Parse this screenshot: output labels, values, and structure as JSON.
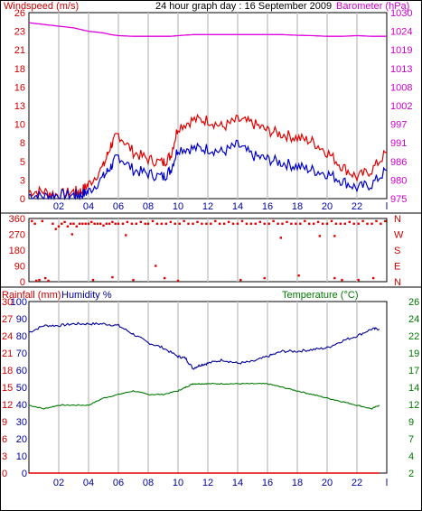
{
  "header": {
    "title": "24 hour graph day : 16 September 2009",
    "left_label": "Windspeed (m/s)",
    "right_label": "Barometer (hPa)"
  },
  "colors": {
    "wind_gust": "#e00000",
    "wind_avg": "#0000cc",
    "barometer": "#e000e0",
    "direction": "#e00000",
    "humidity": "#000099",
    "temperature": "#007700",
    "rainfall": "#e00000",
    "axis_left": "#cc0000",
    "axis_right_baro": "#cc00cc",
    "axis_dir": "#cc0000",
    "axis_hum": "#000099",
    "axis_temp": "#007700"
  },
  "x_ticks": [
    "02",
    "04",
    "06",
    "08",
    "10",
    "12",
    "14",
    "16",
    "18",
    "20",
    "22",
    "l"
  ],
  "chart_data": [
    {
      "type": "line",
      "title": "24 hour graph day : 16 September 2009",
      "ylabel": "Windspeed (m/s)",
      "y2label": "Barometer (hPa)",
      "ylim": [
        0,
        26
      ],
      "y2lim": [
        975,
        1030
      ],
      "yticks": [
        "26",
        "23",
        "21",
        "18",
        "16",
        "13",
        "10",
        "8",
        "5",
        "3",
        "0"
      ],
      "y2ticks": [
        "1030",
        "1024",
        "1019",
        "1013",
        "1008",
        "1002",
        "997",
        "991",
        "986",
        "980",
        "975"
      ],
      "x": [
        0,
        1,
        2,
        3,
        3.5,
        4,
        5,
        5.5,
        6,
        7,
        8,
        9,
        9.5,
        10,
        11,
        12,
        13,
        14,
        15,
        16,
        17,
        18,
        19,
        20,
        21,
        22,
        23,
        24
      ],
      "series": [
        {
          "name": "gust",
          "values": [
            1,
            1,
            0.5,
            1,
            1,
            2,
            4.5,
            7.5,
            9,
            6.5,
            5.5,
            5,
            6,
            10,
            11,
            11,
            10,
            11,
            10.5,
            9.5,
            9,
            8.5,
            8,
            6.5,
            4.5,
            3,
            4,
            6.5
          ]
        },
        {
          "name": "average",
          "values": [
            0.5,
            0.3,
            0.5,
            0.5,
            0.5,
            1,
            3,
            4.5,
            6,
            4,
            3.5,
            3,
            4,
            7,
            7,
            7,
            6.5,
            7.5,
            6,
            5.5,
            5,
            4.5,
            4,
            3.5,
            2.5,
            1.5,
            2,
            4
          ]
        },
        {
          "name": "barometer",
          "values": [
            1027,
            1026.5,
            1026,
            1025.5,
            1025,
            1024.5,
            1024,
            1023.5,
            1023.2,
            1023,
            1023,
            1023,
            1023,
            1023.2,
            1023.5,
            1023.5,
            1023.5,
            1023.5,
            1023.5,
            1023.5,
            1023.5,
            1023.3,
            1023.2,
            1023,
            1023,
            1023.2,
            1023,
            1023
          ]
        }
      ]
    },
    {
      "type": "scatter",
      "ylabel_right": [
        "N",
        "W",
        "S",
        "E",
        "N"
      ],
      "ylim": [
        0,
        360
      ],
      "yticks": [
        "360",
        "270",
        "180",
        "90",
        "0"
      ],
      "series": [
        {
          "name": "direction",
          "values": [
            [
              0.2,
              345
            ],
            [
              0.4,
              330
            ],
            [
              0.5,
              5
            ],
            [
              0.7,
              10
            ],
            [
              0.9,
              345
            ],
            [
              1.1,
              20
            ],
            [
              1.3,
              5
            ],
            [
              1.6,
              330
            ],
            [
              1.8,
              300
            ],
            [
              2.0,
              315
            ],
            [
              2.2,
              330
            ],
            [
              2.4,
              340
            ],
            [
              2.6,
              315
            ],
            [
              2.8,
              330
            ],
            [
              3.0,
              330
            ],
            [
              3.2,
              315
            ],
            [
              3.4,
              330
            ],
            [
              3.6,
              330
            ],
            [
              3.8,
              330
            ],
            [
              4.0,
              330
            ],
            [
              4.2,
              340
            ],
            [
              4.4,
              330
            ],
            [
              4.6,
              330
            ],
            [
              4.8,
              330
            ],
            [
              5.0,
              320
            ],
            [
              5.2,
              330
            ],
            [
              5.4,
              330
            ],
            [
              5.6,
              340
            ],
            [
              5.8,
              330
            ],
            [
              6.0,
              330
            ],
            [
              6.3,
              330
            ],
            [
              6.6,
              340
            ],
            [
              6.9,
              330
            ],
            [
              7.2,
              330
            ],
            [
              7.5,
              340
            ],
            [
              7.8,
              330
            ],
            [
              8.0,
              330
            ],
            [
              8.3,
              345
            ],
            [
              8.6,
              330
            ],
            [
              8.9,
              330
            ],
            [
              9.2,
              330
            ],
            [
              9.5,
              340
            ],
            [
              9.8,
              330
            ],
            [
              10.1,
              330
            ],
            [
              10.4,
              345
            ],
            [
              10.7,
              330
            ],
            [
              11.0,
              330
            ],
            [
              11.3,
              340
            ],
            [
              11.6,
              330
            ],
            [
              11.9,
              330
            ],
            [
              12.2,
              330
            ],
            [
              12.5,
              345
            ],
            [
              12.8,
              330
            ],
            [
              13.1,
              330
            ],
            [
              13.4,
              340
            ],
            [
              13.7,
              330
            ],
            [
              14.0,
              330
            ],
            [
              14.3,
              345
            ],
            [
              14.6,
              330
            ],
            [
              14.9,
              330
            ],
            [
              15.2,
              330
            ],
            [
              15.5,
              340
            ],
            [
              15.8,
              330
            ],
            [
              16.1,
              330
            ],
            [
              16.4,
              345
            ],
            [
              16.7,
              330
            ],
            [
              17.0,
              330
            ],
            [
              17.3,
              340
            ],
            [
              17.6,
              330
            ],
            [
              17.9,
              330
            ],
            [
              18.2,
              330
            ],
            [
              18.5,
              345
            ],
            [
              18.8,
              330
            ],
            [
              19.1,
              330
            ],
            [
              19.4,
              340
            ],
            [
              19.7,
              330
            ],
            [
              20.0,
              330
            ],
            [
              20.3,
              345
            ],
            [
              20.6,
              330
            ],
            [
              20.9,
              330
            ],
            [
              21.2,
              330
            ],
            [
              21.5,
              340
            ],
            [
              21.8,
              330
            ],
            [
              22.1,
              330
            ],
            [
              22.4,
              345
            ],
            [
              22.7,
              330
            ],
            [
              23.0,
              330
            ],
            [
              23.3,
              345
            ],
            [
              23.6,
              330
            ],
            [
              23.9,
              345
            ],
            [
              4.3,
              10
            ],
            [
              5.6,
              25
            ],
            [
              7.0,
              10
            ],
            [
              8.5,
              90
            ],
            [
              9.1,
              20
            ],
            [
              10.0,
              5
            ],
            [
              14.2,
              10
            ],
            [
              15.8,
              20
            ],
            [
              18.1,
              35
            ],
            [
              20.5,
              20
            ],
            [
              21.0,
              10
            ],
            [
              22.1,
              10
            ],
            [
              23.1,
              20
            ],
            [
              16.9,
              250
            ],
            [
              19.5,
              260
            ],
            [
              20.5,
              260
            ],
            [
              2.9,
              270
            ],
            [
              6.5,
              265
            ]
          ]
        }
      ]
    },
    {
      "type": "line",
      "ylabel": "Rainfall (mm)",
      "y2label": "Humidity %",
      "y3label": "Temperature (°C)",
      "ylim": [
        0,
        30
      ],
      "yticks": [
        "30",
        "27",
        "24",
        "21",
        "18",
        "15",
        "12",
        "9",
        "6",
        "3",
        "0"
      ],
      "humidity_ticks": [
        "100",
        "90",
        "80",
        "70",
        "60",
        "50",
        "40",
        "30",
        "20",
        "10",
        "0"
      ],
      "temperature_ticks": [
        "26",
        "24",
        "22",
        "19",
        "17",
        "14",
        "12",
        "9",
        "7",
        "4",
        "2"
      ],
      "humidity_lim": [
        0,
        100
      ],
      "temperature_lim": [
        2,
        26
      ],
      "x": [
        0,
        1,
        2,
        3,
        4,
        5,
        6,
        7,
        8,
        9,
        10,
        10.5,
        11,
        11.5,
        12,
        13,
        14,
        15,
        16,
        17,
        18,
        19,
        20,
        21,
        22,
        23,
        23.5
      ],
      "series": [
        {
          "name": "rainfall",
          "values": [
            0,
            0,
            0,
            0,
            0,
            0,
            0,
            0,
            0,
            0,
            0,
            0,
            0,
            0,
            0,
            0,
            0,
            0,
            0,
            0,
            0,
            0,
            0,
            0,
            0,
            0,
            0
          ]
        },
        {
          "name": "humidity",
          "values": [
            82,
            86,
            86,
            87,
            87,
            87,
            86,
            81,
            76,
            73,
            68,
            67,
            61,
            63,
            64,
            66,
            64,
            65,
            68,
            71,
            71,
            72,
            73,
            77,
            80,
            84,
            84
          ]
        },
        {
          "name": "temperature",
          "values": [
            11.5,
            11,
            11.5,
            11.5,
            11.5,
            12.5,
            13,
            13.5,
            13,
            13,
            13.5,
            14,
            14.5,
            14.5,
            14.5,
            14.5,
            14.5,
            14.5,
            14.5,
            14,
            13.5,
            13,
            12.5,
            12,
            11.5,
            11,
            11.5
          ]
        }
      ]
    }
  ]
}
